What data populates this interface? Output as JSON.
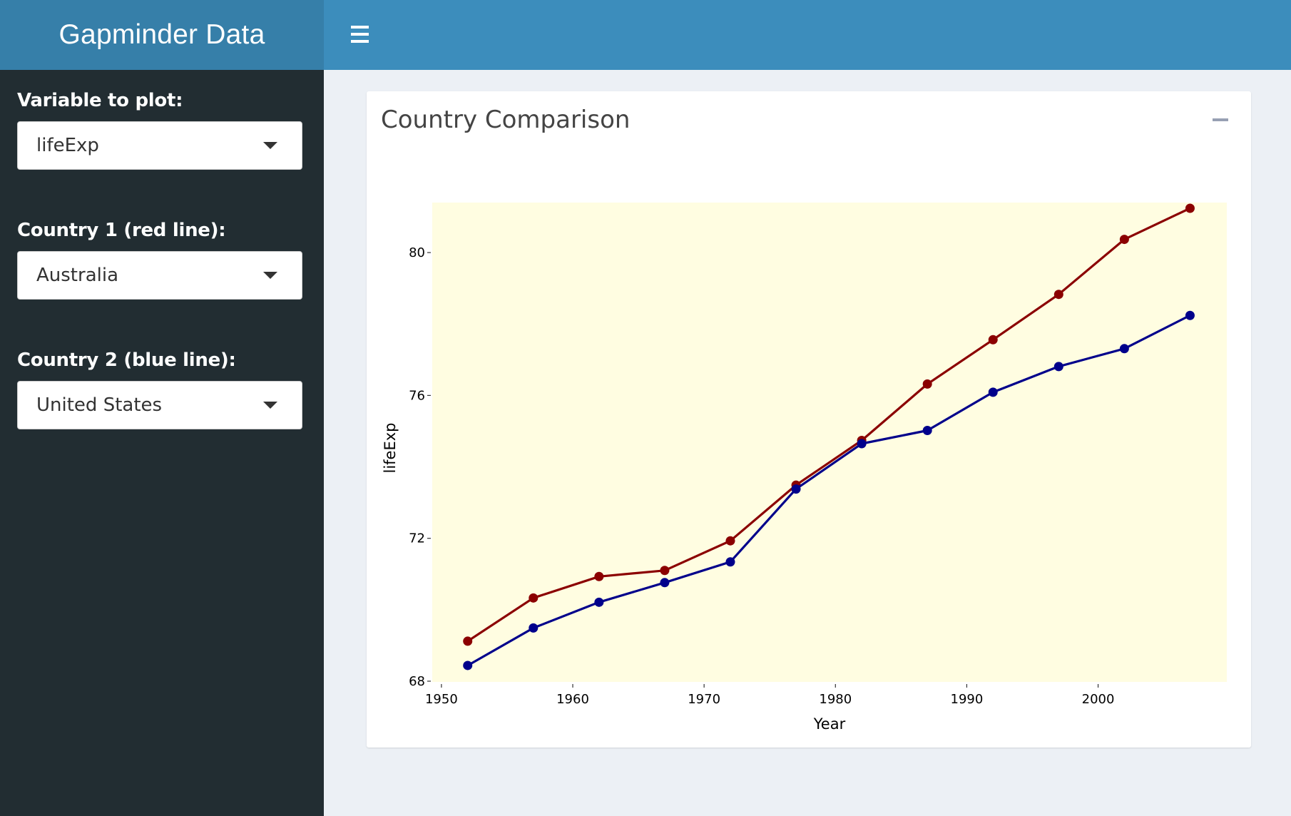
{
  "header": {
    "app_title": "Gapminder Data",
    "menu_icon": "hamburger-icon",
    "brand_color": "#367fa9",
    "navbar_color": "#3c8dbc"
  },
  "sidebar": {
    "background": "#222d32",
    "controls": [
      {
        "label": "Variable to plot:",
        "value": "lifeExp"
      },
      {
        "label": "Country 1 (red line):",
        "value": "Australia"
      },
      {
        "label": "Country 2 (blue line):",
        "value": "United States"
      }
    ]
  },
  "box": {
    "title": "Country Comparison",
    "collapse_icon": "minus-icon"
  },
  "chart_data": {
    "type": "line",
    "xlabel": "Year",
    "ylabel": "lifeExp",
    "x": [
      1952,
      1957,
      1962,
      1967,
      1972,
      1977,
      1982,
      1987,
      1992,
      1997,
      2002,
      2007
    ],
    "xlim": [
      1949.3,
      2009.8
    ],
    "ylim": [
      67.98,
      81.4
    ],
    "xticks": [
      1950,
      1960,
      1970,
      1980,
      1990,
      2000
    ],
    "yticks": [
      68,
      72,
      76,
      80
    ],
    "plot_background": "#fffde1",
    "grid": false,
    "series": [
      {
        "color": "#8b0000",
        "values": [
          69.12,
          70.33,
          70.93,
          71.1,
          71.93,
          73.49,
          74.74,
          76.32,
          77.56,
          78.83,
          80.37,
          81.24
        ]
      },
      {
        "color": "#00008b",
        "values": [
          68.44,
          69.49,
          70.21,
          70.76,
          71.34,
          73.38,
          74.65,
          75.02,
          76.09,
          76.81,
          77.31,
          78.24
        ]
      }
    ]
  }
}
